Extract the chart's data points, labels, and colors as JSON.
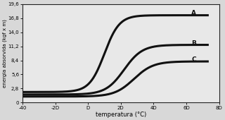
{
  "title": "",
  "xlabel": "temperatura (°C)",
  "ylabel": "energia absorvida (kgf x m)",
  "xlim": [
    -40,
    75
  ],
  "ylim": [
    0,
    19.6
  ],
  "xticks": [
    -40,
    -20,
    0,
    20,
    40,
    60,
    80
  ],
  "xtick_labels": [
    "-40",
    "-2D",
    "D",
    "2D",
    "4D",
    "6D",
    "8D"
  ],
  "yticks": [
    0,
    2.8,
    5.6,
    8.4,
    11.2,
    14.0,
    16.8,
    19.6
  ],
  "ytick_labels": [
    "0",
    "2,8",
    "5,6",
    "8,4",
    "11,2",
    "14,0",
    "16,8",
    "19,6"
  ],
  "curve_A_label": "A",
  "curve_B_label": "B",
  "curve_C_label": "C",
  "line_color": "#111111",
  "background_color": "#d8d8d8",
  "plot_bg": "#e8e8e8",
  "curve_A": {
    "x0": 10,
    "L_low": 2.1,
    "L_high": 17.4,
    "k": 0.22
  },
  "curve_B": {
    "x0": 22,
    "L_low": 1.6,
    "L_high": 11.5,
    "k": 0.18
  },
  "curve_C": {
    "x0": 28,
    "L_low": 1.2,
    "L_high": 8.2,
    "k": 0.17
  }
}
